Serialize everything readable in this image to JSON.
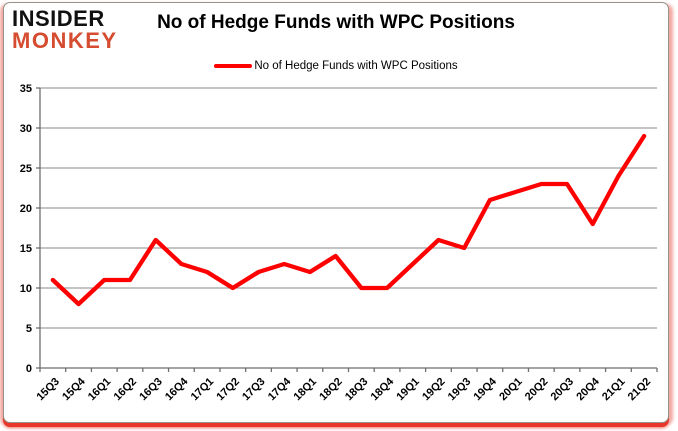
{
  "logo": {
    "line1": "INSIDER",
    "line2": "MONKEY"
  },
  "header": {
    "title": "No of Hedge Funds with WPC Positions"
  },
  "legend": {
    "label": "No of Hedge Funds with WPC Positions"
  },
  "colors": {
    "series": "#fe0000",
    "logo_black": "#111111",
    "logo_red": "#d54c30",
    "gridline": "#8a8a8a",
    "axis": "#6e6e6e",
    "frame_border_red": "#e8362b",
    "frame_glow_pink": "#f3a9a3"
  },
  "chart_data": {
    "type": "line",
    "title": "No of Hedge Funds with WPC Positions",
    "categories": [
      "15Q3",
      "15Q4",
      "16Q1",
      "16Q2",
      "16Q3",
      "16Q4",
      "17Q1",
      "17Q2",
      "17Q3",
      "17Q4",
      "18Q1",
      "18Q2",
      "18Q3",
      "18Q4",
      "19Q1",
      "19Q2",
      "19Q3",
      "19Q4",
      "20Q1",
      "20Q2",
      "20Q3",
      "20Q4",
      "21Q1",
      "21Q2"
    ],
    "series": [
      {
        "name": "No of Hedge Funds with WPC Positions",
        "values": [
          11,
          8,
          11,
          11,
          16,
          13,
          12,
          10,
          12,
          13,
          12,
          14,
          10,
          10,
          13,
          16,
          15,
          21,
          22,
          23,
          23,
          18,
          24,
          29
        ]
      }
    ],
    "xlabel": "",
    "ylabel": "",
    "ylim": [
      0,
      35
    ],
    "ytick_step": 5,
    "ytick_labels": [
      "0",
      "5",
      "10",
      "15",
      "20",
      "25",
      "30",
      "35"
    ],
    "grid": "horizontal",
    "legend_position": "top"
  }
}
